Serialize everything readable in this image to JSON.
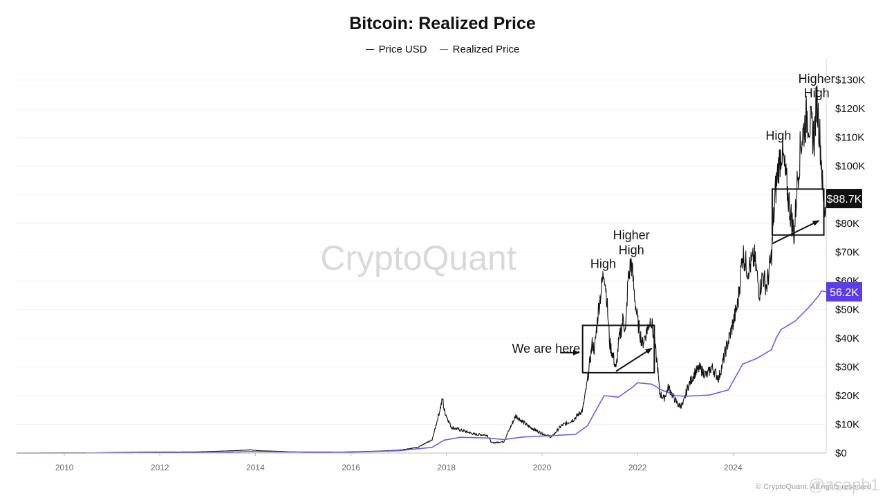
{
  "chart_data": {
    "type": "line",
    "title": "Bitcoin: Realized Price",
    "legend": [
      "Price USD",
      "Realized Price"
    ],
    "x_range": [
      2009.0,
      2025.95
    ],
    "ylim": [
      0,
      135000
    ],
    "x_ticks": [
      "2010",
      "2012",
      "2014",
      "2016",
      "2018",
      "2020",
      "2022",
      "2024"
    ],
    "y_ticks": [
      "$130K",
      "$120K",
      "$110K",
      "$100K",
      "$90K",
      "$80K",
      "$70K",
      "$60K",
      "$50K",
      "$40K",
      "$30K",
      "$20K",
      "$10K",
      "$0"
    ],
    "current_price_label": "$88.7K",
    "current_price": 88700,
    "current_realized_label": "56.2K",
    "current_realized": 56200,
    "series": [
      {
        "name": "Price USD",
        "color": "#111111",
        "points": [
          [
            2009.0,
            0
          ],
          [
            2010.5,
            100
          ],
          [
            2011.5,
            300
          ],
          [
            2012.8,
            400
          ],
          [
            2013.5,
            800
          ],
          [
            2013.9,
            1100
          ],
          [
            2014.1,
            800
          ],
          [
            2014.5,
            600
          ],
          [
            2015.0,
            300
          ],
          [
            2015.5,
            250
          ],
          [
            2016.0,
            430
          ],
          [
            2016.5,
            650
          ],
          [
            2017.0,
            1000
          ],
          [
            2017.4,
            2000
          ],
          [
            2017.7,
            4500
          ],
          [
            2017.92,
            19000
          ],
          [
            2017.95,
            15000
          ],
          [
            2018.1,
            9000
          ],
          [
            2018.3,
            8000
          ],
          [
            2018.6,
            6500
          ],
          [
            2018.85,
            6300
          ],
          [
            2018.95,
            3500
          ],
          [
            2019.2,
            4000
          ],
          [
            2019.45,
            13000
          ],
          [
            2019.7,
            9500
          ],
          [
            2019.95,
            7200
          ],
          [
            2020.2,
            5500
          ],
          [
            2020.4,
            9500
          ],
          [
            2020.65,
            11500
          ],
          [
            2020.85,
            15000
          ],
          [
            2020.95,
            25000
          ],
          [
            2021.05,
            38000
          ],
          [
            2021.1,
            36000
          ],
          [
            2021.18,
            50000
          ],
          [
            2021.3,
            64000
          ],
          [
            2021.35,
            55000
          ],
          [
            2021.42,
            38000
          ],
          [
            2021.5,
            33000
          ],
          [
            2021.55,
            29000
          ],
          [
            2021.6,
            38000
          ],
          [
            2021.7,
            47000
          ],
          [
            2021.75,
            42000
          ],
          [
            2021.8,
            60000
          ],
          [
            2021.87,
            67000
          ],
          [
            2021.93,
            56000
          ],
          [
            2022.0,
            46000
          ],
          [
            2022.1,
            38000
          ],
          [
            2022.2,
            43000
          ],
          [
            2022.28,
            47000
          ],
          [
            2022.35,
            39000
          ],
          [
            2022.42,
            30000
          ],
          [
            2022.46,
            21000
          ],
          [
            2022.55,
            19000
          ],
          [
            2022.65,
            23000
          ],
          [
            2022.75,
            19500
          ],
          [
            2022.86,
            16500
          ],
          [
            2022.95,
            16800
          ],
          [
            2023.05,
            23000
          ],
          [
            2023.2,
            28000
          ],
          [
            2023.3,
            29500
          ],
          [
            2023.45,
            27000
          ],
          [
            2023.55,
            30000
          ],
          [
            2023.7,
            26000
          ],
          [
            2023.85,
            36000
          ],
          [
            2023.95,
            42000
          ],
          [
            2024.1,
            52000
          ],
          [
            2024.2,
            70000
          ],
          [
            2024.3,
            64000
          ],
          [
            2024.45,
            68000
          ],
          [
            2024.55,
            56000
          ],
          [
            2024.62,
            62000
          ],
          [
            2024.7,
            58000
          ],
          [
            2024.8,
            68000
          ],
          [
            2024.88,
            90000
          ],
          [
            2024.95,
            100000
          ],
          [
            2025.02,
            106000
          ],
          [
            2025.1,
            96000
          ],
          [
            2025.2,
            84000
          ],
          [
            2025.28,
            76000
          ],
          [
            2025.35,
            96000
          ],
          [
            2025.42,
            108000
          ],
          [
            2025.55,
            118000
          ],
          [
            2025.62,
            114000
          ],
          [
            2025.7,
            110000
          ],
          [
            2025.75,
            124000
          ],
          [
            2025.8,
            114000
          ],
          [
            2025.85,
            102000
          ],
          [
            2025.88,
            90000
          ],
          [
            2025.91,
            84000
          ],
          [
            2025.95,
            88700
          ]
        ]
      },
      {
        "name": "Realized Price",
        "color": "#6b5fe0",
        "points": [
          [
            2009.0,
            0
          ],
          [
            2013.0,
            100
          ],
          [
            2013.9,
            500
          ],
          [
            2014.5,
            400
          ],
          [
            2016.0,
            300
          ],
          [
            2017.0,
            800
          ],
          [
            2017.7,
            2000
          ],
          [
            2017.95,
            4500
          ],
          [
            2018.3,
            5500
          ],
          [
            2018.9,
            5200
          ],
          [
            2019.2,
            4700
          ],
          [
            2019.6,
            5600
          ],
          [
            2020.0,
            5900
          ],
          [
            2020.7,
            6500
          ],
          [
            2020.95,
            9500
          ],
          [
            2021.1,
            14000
          ],
          [
            2021.3,
            20000
          ],
          [
            2021.6,
            19500
          ],
          [
            2021.9,
            23000
          ],
          [
            2022.0,
            24500
          ],
          [
            2022.3,
            24000
          ],
          [
            2022.5,
            22000
          ],
          [
            2022.8,
            20000
          ],
          [
            2023.0,
            19800
          ],
          [
            2023.5,
            20200
          ],
          [
            2023.9,
            22000
          ],
          [
            2024.0,
            25000
          ],
          [
            2024.2,
            31000
          ],
          [
            2024.5,
            33000
          ],
          [
            2024.8,
            36000
          ],
          [
            2024.9,
            40000
          ],
          [
            2025.0,
            43000
          ],
          [
            2025.3,
            46000
          ],
          [
            2025.6,
            51000
          ],
          [
            2025.8,
            55000
          ],
          [
            2025.85,
            56500
          ],
          [
            2025.95,
            56200
          ]
        ]
      }
    ],
    "annotations": [
      {
        "text": "High",
        "x": 2021.28,
        "y": 64500
      },
      {
        "text": "Higher",
        "x": 2021.87,
        "y": 74500
      },
      {
        "text": "High",
        "x": 2021.87,
        "y": 69300
      },
      {
        "text": "We are here",
        "x": 2020.8,
        "y": 35000
      },
      {
        "text": "High",
        "x": 2024.95,
        "y": 109200
      },
      {
        "text": "Higher",
        "x": 2025.75,
        "y": 129000
      },
      {
        "text": "High",
        "x": 2025.75,
        "y": 124000
      }
    ],
    "boxes": [
      {
        "name": "zone-box-2021",
        "x0": 2020.85,
        "x1": 2022.35,
        "y0": 28000,
        "y1": 44500
      },
      {
        "name": "zone-box-2025",
        "x0": 2024.82,
        "x1": 2025.9,
        "y0": 76000,
        "y1": 92000
      }
    ],
    "arrows": [
      {
        "name": "arrow-we-are-here",
        "x0": 2020.38,
        "y0": 35000,
        "x1": 2020.78,
        "y1": 35000
      },
      {
        "name": "arrow-trend-2021",
        "x0": 2021.55,
        "y0": 28500,
        "x1": 2022.3,
        "y1": 36500
      },
      {
        "name": "arrow-trend-2025",
        "x0": 2024.82,
        "y0": 73000,
        "x1": 2025.8,
        "y1": 81000
      }
    ]
  },
  "watermark": "CryptoQuant",
  "footer": "© CryptoQuant. All rights reserved",
  "handle": "@asaph1"
}
